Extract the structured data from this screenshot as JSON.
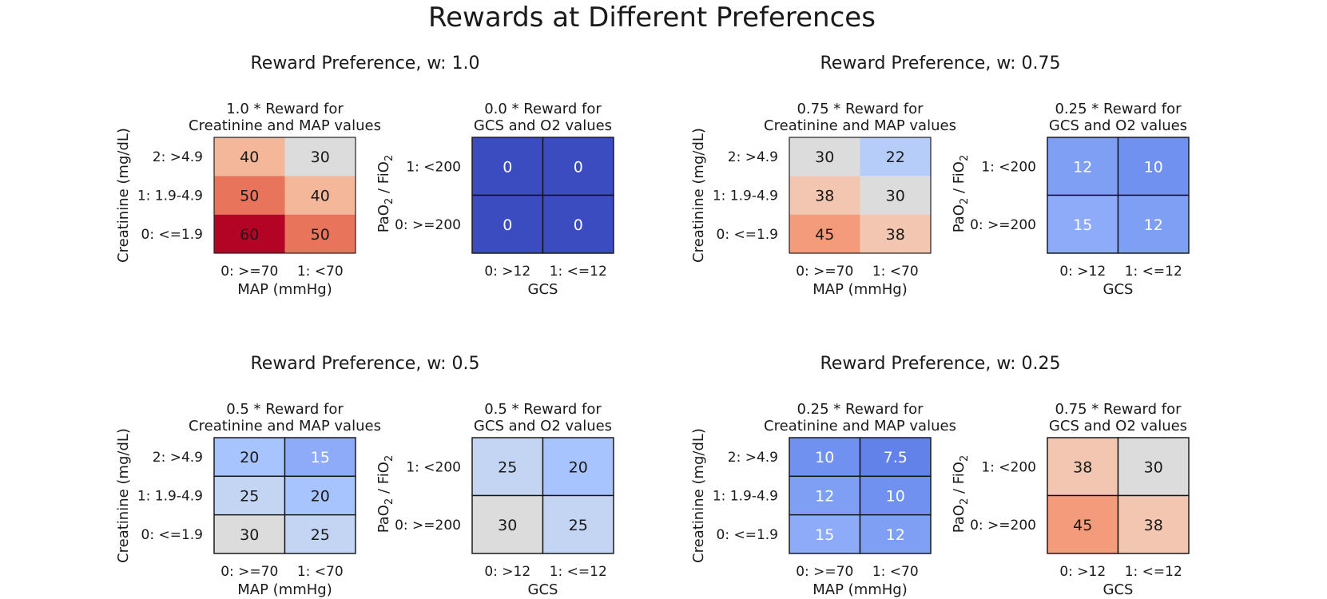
{
  "title": "Rewards at Different Preferences",
  "chart_data": [
    {
      "type": "heatmap",
      "title": "Reward Preference, w: 1.0",
      "panels": [
        {
          "title_lines": [
            "1.0 * Reward for",
            "Creatinine and MAP values"
          ],
          "xlabel": "MAP (mmHg)",
          "ylabel": "Creatinine (mg/dL)",
          "x_ticks": [
            "0: >=70",
            "1: <70"
          ],
          "y_ticks": [
            "2: >4.9",
            "1: 1.9-4.9",
            "0: <=1.9"
          ],
          "values": [
            [
              40,
              30
            ],
            [
              50,
              40
            ],
            [
              60,
              50
            ]
          ],
          "labels": [
            [
              "40",
              "30"
            ],
            [
              "50",
              "40"
            ],
            [
              "60",
              "50"
            ]
          ],
          "cell_borders": false
        },
        {
          "title_lines": [
            "0.0 * Reward for",
            "GCS and O2 values"
          ],
          "xlabel": "GCS",
          "ylabel": "PaO2 / FiO2",
          "x_ticks": [
            "0: >12",
            "1: <=12"
          ],
          "y_ticks": [
            "1: <200",
            "0: >=200"
          ],
          "values": [
            [
              0,
              0
            ],
            [
              0,
              0
            ]
          ],
          "labels": [
            [
              "0",
              "0"
            ],
            [
              "0",
              "0"
            ]
          ],
          "cell_borders": true
        }
      ]
    },
    {
      "type": "heatmap",
      "title": "Reward Preference, w: 0.75",
      "panels": [
        {
          "title_lines": [
            "0.75 * Reward for",
            "Creatinine and MAP values"
          ],
          "xlabel": "MAP (mmHg)",
          "ylabel": "Creatinine (mg/dL)",
          "x_ticks": [
            "0: >=70",
            "1: <70"
          ],
          "y_ticks": [
            "2: >4.9",
            "1: 1.9-4.9",
            "0: <=1.9"
          ],
          "values": [
            [
              30,
              22.5
            ],
            [
              37.5,
              30
            ],
            [
              45,
              37.5
            ]
          ],
          "labels": [
            [
              "30",
              "22"
            ],
            [
              "38",
              "30"
            ],
            [
              "45",
              "38"
            ]
          ],
          "cell_borders": false
        },
        {
          "title_lines": [
            "0.25 * Reward for",
            "GCS and O2 values"
          ],
          "xlabel": "GCS",
          "ylabel": "PaO2 / FiO2",
          "x_ticks": [
            "0: >12",
            "1: <=12"
          ],
          "y_ticks": [
            "1: <200",
            "0: >=200"
          ],
          "values": [
            [
              12.5,
              10
            ],
            [
              15,
              12.5
            ]
          ],
          "labels": [
            [
              "12",
              "10"
            ],
            [
              "15",
              "12"
            ]
          ],
          "cell_borders": true
        }
      ]
    },
    {
      "type": "heatmap",
      "title": "Reward Preference, w: 0.5",
      "panels": [
        {
          "title_lines": [
            "0.5 * Reward for",
            "Creatinine and MAP values"
          ],
          "xlabel": "MAP (mmHg)",
          "ylabel": "Creatinine (mg/dL)",
          "x_ticks": [
            "0: >=70",
            "1: <70"
          ],
          "y_ticks": [
            "2: >4.9",
            "1: 1.9-4.9",
            "0: <=1.9"
          ],
          "values": [
            [
              20,
              15
            ],
            [
              25,
              20
            ],
            [
              30,
              25
            ]
          ],
          "labels": [
            [
              "20",
              "15"
            ],
            [
              "25",
              "20"
            ],
            [
              "30",
              "25"
            ]
          ],
          "cell_borders": true
        },
        {
          "title_lines": [
            "0.5 * Reward for",
            "GCS and O2 values"
          ],
          "xlabel": "GCS",
          "ylabel": "PaO2 / FiO2",
          "x_ticks": [
            "0: >12",
            "1: <=12"
          ],
          "y_ticks": [
            "1: <200",
            "0: >=200"
          ],
          "values": [
            [
              25,
              20
            ],
            [
              30,
              25
            ]
          ],
          "labels": [
            [
              "25",
              "20"
            ],
            [
              "30",
              "25"
            ]
          ],
          "cell_borders": true
        }
      ]
    },
    {
      "type": "heatmap",
      "title": "Reward Preference, w: 0.25",
      "panels": [
        {
          "title_lines": [
            "0.25 * Reward for",
            "Creatinine and MAP values"
          ],
          "xlabel": "MAP (mmHg)",
          "ylabel": "Creatinine (mg/dL)",
          "x_ticks": [
            "0: >=70",
            "1: <70"
          ],
          "y_ticks": [
            "2: >4.9",
            "1: 1.9-4.9",
            "0: <=1.9"
          ],
          "values": [
            [
              10,
              7.5
            ],
            [
              12.5,
              10
            ],
            [
              15,
              12.5
            ]
          ],
          "labels": [
            [
              "10",
              "7.5"
            ],
            [
              "12",
              "10"
            ],
            [
              "15",
              "12"
            ]
          ],
          "cell_borders": true
        },
        {
          "title_lines": [
            "0.75 * Reward for",
            "GCS and O2 values"
          ],
          "xlabel": "GCS",
          "ylabel": "PaO2 / FiO2",
          "x_ticks": [
            "0: >12",
            "1: <=12"
          ],
          "y_ticks": [
            "1: <200",
            "0: >=200"
          ],
          "values": [
            [
              37.5,
              30
            ],
            [
              45,
              37.5
            ]
          ],
          "labels": [
            [
              "38",
              "30"
            ],
            [
              "45",
              "38"
            ]
          ],
          "cell_borders": true
        }
      ]
    }
  ],
  "color_scale": {
    "colormap": "coolwarm",
    "range": [
      0,
      60
    ],
    "stops": [
      {
        "value": 0,
        "color": "#3b4cc0"
      },
      {
        "value": 7.5,
        "color": "#6282ea"
      },
      {
        "value": 12.5,
        "color": "#7f9ff5"
      },
      {
        "value": 20,
        "color": "#a8c4fe"
      },
      {
        "value": 25,
        "color": "#c4d5f3"
      },
      {
        "value": 30,
        "color": "#dddcdc"
      },
      {
        "value": 37.5,
        "color": "#f2c6b0"
      },
      {
        "value": 40,
        "color": "#f5b79a"
      },
      {
        "value": 45,
        "color": "#f39b7a"
      },
      {
        "value": 50,
        "color": "#e8745b"
      },
      {
        "value": 60,
        "color": "#b40426"
      }
    ],
    "dark_text_above": 16
  }
}
